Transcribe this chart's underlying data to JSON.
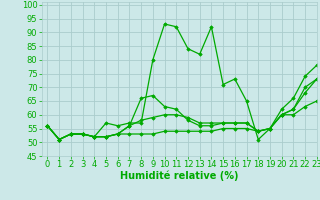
{
  "xlabel": "Humidité relative (%)",
  "background_color": "#cce8e8",
  "grid_color": "#aacccc",
  "line_color": "#00aa00",
  "xlim": [
    -0.5,
    23
  ],
  "ylim": [
    45,
    101
  ],
  "yticks": [
    45,
    50,
    55,
    60,
    65,
    70,
    75,
    80,
    85,
    90,
    95,
    100
  ],
  "xticks": [
    0,
    1,
    2,
    3,
    4,
    5,
    6,
    7,
    8,
    9,
    10,
    11,
    12,
    13,
    14,
    15,
    16,
    17,
    18,
    19,
    20,
    21,
    22,
    23
  ],
  "series": [
    [
      56,
      51,
      53,
      53,
      52,
      57,
      56,
      57,
      57,
      80,
      93,
      92,
      84,
      82,
      92,
      71,
      73,
      65,
      51,
      55,
      62,
      66,
      74,
      78
    ],
    [
      56,
      51,
      53,
      53,
      52,
      52,
      53,
      56,
      66,
      67,
      63,
      62,
      58,
      56,
      56,
      57,
      57,
      57,
      54,
      55,
      60,
      62,
      70,
      73
    ],
    [
      56,
      51,
      53,
      53,
      52,
      52,
      53,
      56,
      58,
      59,
      60,
      60,
      59,
      57,
      57,
      57,
      57,
      57,
      54,
      55,
      60,
      62,
      68,
      73
    ],
    [
      56,
      51,
      53,
      53,
      52,
      52,
      53,
      53,
      53,
      53,
      54,
      54,
      54,
      54,
      54,
      55,
      55,
      55,
      54,
      55,
      60,
      60,
      63,
      65
    ]
  ],
  "marker": "D",
  "markersize": 1.8,
  "linewidth": 0.9,
  "xlabel_fontsize": 7,
  "xlabel_fontweight": "bold",
  "tick_fontsize": 6
}
